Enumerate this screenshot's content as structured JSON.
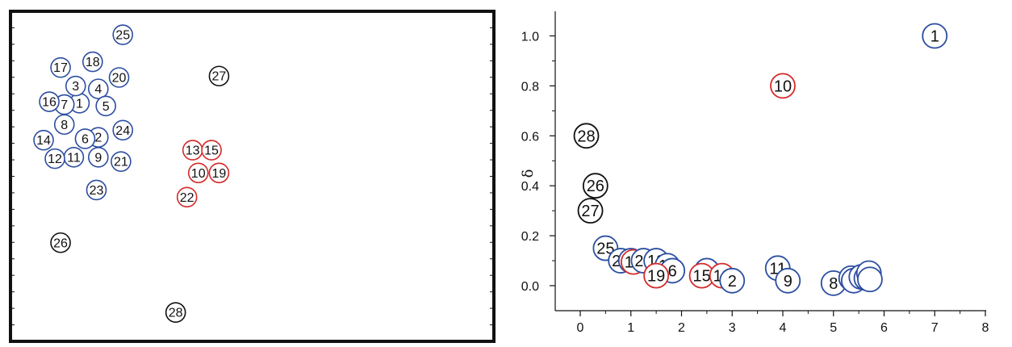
{
  "colors": {
    "cluster": "#2c4ea0",
    "halo": "#d42a2a",
    "outlier": "#111111"
  },
  "chart_data": [
    {
      "type": "scatter",
      "name": "spatial-distribution",
      "title": "",
      "xlabel": "",
      "ylabel": "",
      "axes_shown": false,
      "points": [
        {
          "label": "1",
          "x": 0.125,
          "y": 0.26,
          "group": "cluster"
        },
        {
          "label": "2",
          "x": 0.175,
          "y": 0.38,
          "group": "cluster"
        },
        {
          "label": "3",
          "x": 0.115,
          "y": 0.2,
          "group": "cluster"
        },
        {
          "label": "4",
          "x": 0.175,
          "y": 0.21,
          "group": "cluster"
        },
        {
          "label": "5",
          "x": 0.195,
          "y": 0.27,
          "group": "cluster"
        },
        {
          "label": "6",
          "x": 0.14,
          "y": 0.385,
          "group": "cluster"
        },
        {
          "label": "7",
          "x": 0.085,
          "y": 0.265,
          "group": "cluster"
        },
        {
          "label": "8",
          "x": 0.085,
          "y": 0.335,
          "group": "cluster"
        },
        {
          "label": "9",
          "x": 0.175,
          "y": 0.45,
          "group": "cluster"
        },
        {
          "label": "10",
          "x": 0.44,
          "y": 0.505,
          "group": "halo"
        },
        {
          "label": "11",
          "x": 0.11,
          "y": 0.45,
          "group": "cluster"
        },
        {
          "label": "12",
          "x": 0.06,
          "y": 0.455,
          "group": "cluster"
        },
        {
          "label": "13",
          "x": 0.425,
          "y": 0.425,
          "group": "halo"
        },
        {
          "label": "14",
          "x": 0.03,
          "y": 0.39,
          "group": "cluster"
        },
        {
          "label": "15",
          "x": 0.475,
          "y": 0.425,
          "group": "halo"
        },
        {
          "label": "16",
          "x": 0.045,
          "y": 0.255,
          "group": "cluster"
        },
        {
          "label": "17",
          "x": 0.075,
          "y": 0.135,
          "group": "cluster"
        },
        {
          "label": "18",
          "x": 0.16,
          "y": 0.115,
          "group": "cluster"
        },
        {
          "label": "19",
          "x": 0.495,
          "y": 0.505,
          "group": "halo"
        },
        {
          "label": "20",
          "x": 0.23,
          "y": 0.17,
          "group": "cluster"
        },
        {
          "label": "21",
          "x": 0.235,
          "y": 0.465,
          "group": "cluster"
        },
        {
          "label": "22",
          "x": 0.41,
          "y": 0.59,
          "group": "halo"
        },
        {
          "label": "23",
          "x": 0.17,
          "y": 0.565,
          "group": "cluster"
        },
        {
          "label": "24",
          "x": 0.24,
          "y": 0.355,
          "group": "cluster"
        },
        {
          "label": "25",
          "x": 0.24,
          "y": 0.02,
          "group": "cluster"
        },
        {
          "label": "26",
          "x": 0.075,
          "y": 0.75,
          "group": "outlier"
        },
        {
          "label": "27",
          "x": 0.495,
          "y": 0.165,
          "group": "outlier"
        },
        {
          "label": "28",
          "x": 0.38,
          "y": 0.995,
          "group": "outlier"
        }
      ]
    },
    {
      "type": "scatter",
      "name": "decision-graph",
      "title": "",
      "xlabel": "",
      "ylabel": "δ",
      "xlim": [
        -0.5,
        8
      ],
      "ylim": [
        -0.1,
        1.1
      ],
      "xticks": [
        0,
        1,
        2,
        3,
        4,
        5,
        6,
        7,
        8
      ],
      "yticks": [
        "0.0",
        "0.2",
        "0.4",
        "0.6",
        "0.8",
        "1.0"
      ],
      "points": [
        {
          "label": "1",
          "x": 7.0,
          "y": 1.0,
          "group": "cluster"
        },
        {
          "label": "10",
          "x": 4.0,
          "y": 0.8,
          "group": "halo"
        },
        {
          "label": "28",
          "x": 0.12,
          "y": 0.6,
          "group": "outlier"
        },
        {
          "label": "26",
          "x": 0.3,
          "y": 0.4,
          "group": "outlier"
        },
        {
          "label": "27",
          "x": 0.2,
          "y": 0.3,
          "group": "outlier"
        },
        {
          "label": "25",
          "x": 0.5,
          "y": 0.15,
          "group": "cluster"
        },
        {
          "label": "24",
          "x": 0.8,
          "y": 0.1,
          "group": "cluster"
        },
        {
          "label": "3",
          "x": 1.0,
          "y": 0.1,
          "group": "cluster"
        },
        {
          "label": "13",
          "x": 1.05,
          "y": 0.095,
          "group": "halo"
        },
        {
          "label": "20",
          "x": 1.25,
          "y": 0.1,
          "group": "cluster"
        },
        {
          "label": "18",
          "x": 1.5,
          "y": 0.1,
          "group": "cluster"
        },
        {
          "label": "17",
          "x": 1.72,
          "y": 0.08,
          "group": "cluster"
        },
        {
          "label": "6",
          "x": 1.82,
          "y": 0.06,
          "group": "cluster"
        },
        {
          "label": "19",
          "x": 1.5,
          "y": 0.04,
          "group": "halo"
        },
        {
          "label": "4",
          "x": 2.5,
          "y": 0.06,
          "group": "cluster"
        },
        {
          "label": "15",
          "x": 2.4,
          "y": 0.04,
          "group": "halo"
        },
        {
          "label": "13",
          "x": 2.8,
          "y": 0.04,
          "group": "halo"
        },
        {
          "label": "2",
          "x": 3.0,
          "y": 0.02,
          "group": "cluster"
        },
        {
          "label": "11",
          "x": 3.9,
          "y": 0.07,
          "group": "cluster"
        },
        {
          "label": "9",
          "x": 4.1,
          "y": 0.02,
          "group": "cluster"
        },
        {
          "label": "8",
          "x": 5.0,
          "y": 0.01,
          "group": "cluster"
        },
        {
          "label": "7",
          "x": 5.35,
          "y": 0.03,
          "group": "cluster"
        },
        {
          "label": "",
          "x": 5.4,
          "y": 0.02,
          "group": "cluster"
        },
        {
          "label": "",
          "x": 5.55,
          "y": 0.035,
          "group": "cluster"
        },
        {
          "label": "",
          "x": 5.65,
          "y": 0.03,
          "group": "cluster"
        },
        {
          "label": "",
          "x": 5.7,
          "y": 0.05,
          "group": "cluster"
        },
        {
          "label": "",
          "x": 5.72,
          "y": 0.025,
          "group": "cluster"
        }
      ]
    }
  ]
}
